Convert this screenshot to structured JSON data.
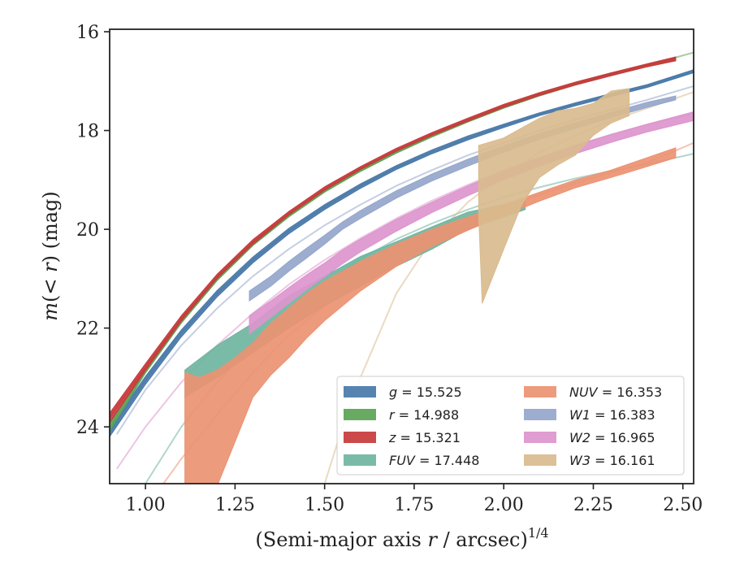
{
  "chart_data": {
    "type": "line",
    "xlabel_main": "(Semi-major axis ",
    "xlabel_var": "r",
    "xlabel_tail": " / arcsec)",
    "xlabel_sup": "1/4",
    "ylabel_m": "m",
    "ylabel_mid": "(< ",
    "ylabel_var": "r",
    "ylabel_tail": ") (mag)",
    "xlim": [
      0.9,
      2.53
    ],
    "ylim": [
      25.15,
      15.95
    ],
    "y_inverted": true,
    "xticks": [
      1.0,
      1.25,
      1.5,
      1.75,
      2.0,
      2.25,
      2.5
    ],
    "xtick_labels": [
      "1.00",
      "1.25",
      "1.50",
      "1.75",
      "2.00",
      "2.25",
      "2.50"
    ],
    "yticks": [
      16,
      18,
      20,
      22,
      24
    ],
    "ytick_labels": [
      "16",
      "18",
      "20",
      "22",
      "24"
    ],
    "grid": false,
    "legend_placement": "lower-right",
    "series": [
      {
        "name": "g",
        "value": "15.525",
        "color": "#4878a8",
        "model_x": [
          0.9,
          1.0,
          1.1,
          1.2,
          1.3,
          1.4,
          1.5,
          1.6,
          1.7,
          1.8,
          1.9,
          2.0,
          2.1,
          2.2,
          2.3,
          2.4,
          2.53
        ],
        "model_y": [
          24.1,
          23.05,
          22.1,
          21.3,
          20.62,
          20.03,
          19.55,
          19.12,
          18.75,
          18.43,
          18.15,
          17.9,
          17.67,
          17.47,
          17.28,
          17.1,
          16.8
        ],
        "band_x": [
          0.9,
          1.0,
          1.1,
          1.2,
          1.3,
          1.4,
          1.5,
          1.6,
          1.7,
          1.8,
          1.9,
          2.0,
          2.1,
          2.2,
          2.3,
          2.4,
          2.53
        ],
        "band_lo": [
          24.03,
          22.98,
          22.04,
          21.24,
          20.56,
          19.98,
          19.5,
          19.08,
          18.71,
          18.39,
          18.11,
          17.87,
          17.64,
          17.44,
          17.25,
          17.07,
          16.77
        ],
        "band_hi": [
          24.2,
          23.14,
          22.18,
          21.37,
          20.68,
          20.09,
          19.6,
          19.17,
          18.79,
          18.47,
          18.19,
          17.94,
          17.7,
          17.5,
          17.31,
          17.13,
          16.83
        ]
      },
      {
        "name": "r",
        "value": "14.988",
        "color": "#5ba354",
        "model_x": [
          0.9,
          1.0,
          1.1,
          1.2,
          1.3,
          1.4,
          1.5,
          1.6,
          1.7,
          1.8,
          1.9,
          2.0,
          2.1,
          2.2,
          2.3,
          2.4,
          2.53
        ],
        "model_y": [
          24.0,
          22.85,
          21.85,
          21.0,
          20.3,
          19.72,
          19.22,
          18.8,
          18.43,
          18.1,
          17.8,
          17.52,
          17.27,
          17.05,
          16.86,
          16.68,
          16.42
        ],
        "band_x": [
          0.9,
          1.0,
          1.1,
          1.2,
          1.3,
          1.4,
          1.5,
          1.6,
          1.7,
          1.8,
          1.9,
          2.0,
          2.1,
          2.2,
          2.3,
          2.4,
          2.48
        ],
        "band_lo": [
          23.94,
          22.8,
          21.81,
          20.96,
          20.27,
          19.69,
          19.19,
          18.77,
          18.41,
          18.08,
          17.78,
          17.5,
          17.25,
          17.03,
          16.84,
          16.66,
          16.52
        ],
        "band_hi": [
          24.08,
          22.91,
          21.9,
          21.04,
          20.33,
          19.75,
          19.25,
          18.83,
          18.46,
          18.13,
          17.83,
          17.55,
          17.3,
          17.08,
          16.89,
          16.71,
          16.57
        ]
      },
      {
        "name": "z",
        "value": "15.321",
        "color": "#c8393b",
        "model_x": [
          0.9,
          1.0,
          1.1,
          1.2,
          1.3,
          1.4,
          1.5,
          1.6,
          1.7,
          1.8,
          1.9,
          2.0,
          2.1,
          2.2,
          2.3,
          2.4,
          2.48
        ],
        "model_y": [
          23.8,
          22.78,
          21.8,
          20.95,
          20.25,
          19.67,
          19.17,
          18.76,
          18.39,
          18.07,
          17.78,
          17.5,
          17.26,
          17.05,
          16.86,
          16.68,
          16.55
        ],
        "band_x": [
          0.9,
          1.0,
          1.1,
          1.2,
          1.3,
          1.4,
          1.5,
          1.6,
          1.7,
          1.8,
          1.9,
          2.0,
          2.1,
          2.2,
          2.3,
          2.4,
          2.48
        ],
        "band_lo": [
          23.72,
          22.72,
          21.75,
          20.91,
          20.21,
          19.64,
          19.14,
          18.73,
          18.36,
          18.04,
          17.75,
          17.47,
          17.23,
          17.02,
          16.83,
          16.65,
          16.51
        ],
        "band_hi": [
          23.92,
          22.86,
          21.86,
          21.0,
          20.3,
          19.71,
          19.21,
          18.79,
          18.42,
          18.1,
          17.81,
          17.53,
          17.29,
          17.08,
          16.89,
          16.71,
          16.59
        ]
      },
      {
        "name": "FUV",
        "value": "17.448",
        "color": "#6fb5a0",
        "model_x": [
          1.0,
          1.1,
          1.2,
          1.3,
          1.4,
          1.5,
          1.6,
          1.7,
          1.8,
          1.9,
          2.0,
          2.1,
          2.2,
          2.3,
          2.4,
          2.53
        ],
        "model_y": [
          25.15,
          24.0,
          23.1,
          22.3,
          21.65,
          21.1,
          20.6,
          20.2,
          19.88,
          19.6,
          19.35,
          19.15,
          18.97,
          18.82,
          18.68,
          18.47
        ],
        "band_x": [
          1.11,
          1.2,
          1.3,
          1.4,
          1.5,
          1.6,
          1.7,
          1.8,
          1.9,
          2.0,
          2.06
        ],
        "band_lo": [
          22.85,
          22.35,
          21.9,
          21.35,
          20.95,
          20.55,
          20.25,
          19.95,
          19.65,
          19.5,
          19.4
        ],
        "band_hi": [
          23.4,
          23.0,
          22.5,
          22.0,
          21.55,
          21.15,
          20.75,
          20.4,
          20.0,
          19.75,
          19.6
        ]
      },
      {
        "name": "NUV",
        "value": "16.353",
        "color": "#ec9272",
        "model_x": [
          1.05,
          1.1,
          1.2,
          1.3,
          1.4,
          1.5,
          1.6,
          1.7,
          1.8,
          1.9,
          2.0,
          2.1,
          2.2,
          2.3,
          2.4,
          2.53
        ],
        "model_y": [
          25.15,
          24.65,
          23.75,
          22.9,
          22.15,
          21.55,
          21.0,
          20.55,
          20.17,
          19.85,
          19.55,
          19.3,
          19.07,
          18.85,
          18.65,
          18.25
        ],
        "band_x": [
          1.11,
          1.15,
          1.2,
          1.25,
          1.3,
          1.35,
          1.4,
          1.45,
          1.5,
          1.6,
          1.7,
          1.8,
          1.9,
          2.0,
          2.1,
          2.2,
          2.3,
          2.4,
          2.48
        ],
        "band_lo": [
          22.9,
          23.0,
          22.85,
          22.6,
          22.3,
          21.9,
          21.6,
          21.3,
          21.05,
          20.65,
          20.3,
          20.0,
          19.75,
          19.5,
          19.25,
          19.0,
          18.8,
          18.55,
          18.35
        ],
        "band_hi": [
          25.2,
          25.2,
          25.2,
          24.3,
          23.4,
          22.95,
          22.6,
          22.2,
          21.85,
          21.25,
          20.75,
          20.35,
          20.02,
          19.72,
          19.43,
          19.16,
          18.95,
          18.73,
          18.55
        ]
      },
      {
        "name": "W1",
        "value": "16.383",
        "color": "#95a6cb",
        "model_x": [
          0.92,
          1.0,
          1.1,
          1.2,
          1.3,
          1.4,
          1.5,
          1.6,
          1.7,
          1.8,
          1.9,
          2.0,
          2.1,
          2.2,
          2.3,
          2.4,
          2.53
        ],
        "model_y": [
          24.15,
          23.25,
          22.35,
          21.6,
          20.95,
          20.4,
          19.92,
          19.5,
          19.12,
          18.8,
          18.5,
          18.25,
          18.0,
          17.78,
          17.58,
          17.38,
          17.1
        ],
        "band_x": [
          1.29,
          1.35,
          1.4,
          1.45,
          1.5,
          1.55,
          1.6,
          1.7,
          1.8,
          1.9,
          2.0,
          2.1,
          2.2,
          2.3,
          2.4,
          2.48
        ],
        "band_lo": [
          21.25,
          20.95,
          20.65,
          20.38,
          20.12,
          19.85,
          19.62,
          19.22,
          18.88,
          18.58,
          18.31,
          18.06,
          17.84,
          17.63,
          17.43,
          17.3
        ],
        "band_hi": [
          21.45,
          21.15,
          20.85,
          20.58,
          20.3,
          20.0,
          19.78,
          19.37,
          19.02,
          18.72,
          18.44,
          18.18,
          17.96,
          17.74,
          17.53,
          17.38
        ]
      },
      {
        "name": "W2",
        "value": "16.965",
        "color": "#dc95cd",
        "model_x": [
          0.92,
          1.0,
          1.1,
          1.2,
          1.3,
          1.4,
          1.5,
          1.6,
          1.7,
          1.8,
          1.9,
          2.0,
          2.1,
          2.2,
          2.3,
          2.4,
          2.53
        ],
        "model_y": [
          24.85,
          24.0,
          23.1,
          22.35,
          21.7,
          21.12,
          20.62,
          20.18,
          19.78,
          19.42,
          19.1,
          18.8,
          18.55,
          18.3,
          18.08,
          17.88,
          17.65
        ],
        "band_x": [
          1.29,
          1.35,
          1.4,
          1.45,
          1.5,
          1.55,
          1.6,
          1.7,
          1.8,
          1.9,
          2.0,
          2.1,
          2.2,
          2.3,
          2.4,
          2.53
        ],
        "band_lo": [
          21.75,
          21.45,
          21.18,
          20.92,
          20.68,
          20.42,
          20.2,
          19.8,
          19.45,
          19.12,
          18.82,
          18.55,
          18.3,
          18.08,
          17.87,
          17.62
        ],
        "band_hi": [
          22.12,
          21.78,
          21.5,
          21.22,
          20.96,
          20.7,
          20.46,
          20.04,
          19.66,
          19.32,
          19.0,
          18.72,
          18.47,
          18.24,
          18.03,
          17.8
        ]
      },
      {
        "name": "W3",
        "value": "16.161",
        "color": "#d9bb8e",
        "model_x": [
          1.5,
          1.55,
          1.6,
          1.7,
          1.8,
          1.9,
          2.0,
          2.1,
          2.2,
          2.3,
          2.4,
          2.53
        ],
        "model_y": [
          25.15,
          24.0,
          23.0,
          21.3,
          20.2,
          19.45,
          18.9,
          18.45,
          18.1,
          17.8,
          17.55,
          17.22
        ],
        "band_x": [
          1.93,
          1.94,
          2.0,
          2.05,
          2.1,
          2.15,
          2.2,
          2.25,
          2.3,
          2.35
        ],
        "band_lo": [
          18.3,
          18.28,
          18.15,
          17.95,
          17.75,
          17.6,
          17.55,
          17.45,
          17.2,
          17.15
        ],
        "band_hi": [
          19.7,
          21.5,
          20.4,
          19.5,
          18.95,
          18.7,
          18.5,
          18.1,
          17.85,
          17.7
        ]
      }
    ]
  }
}
